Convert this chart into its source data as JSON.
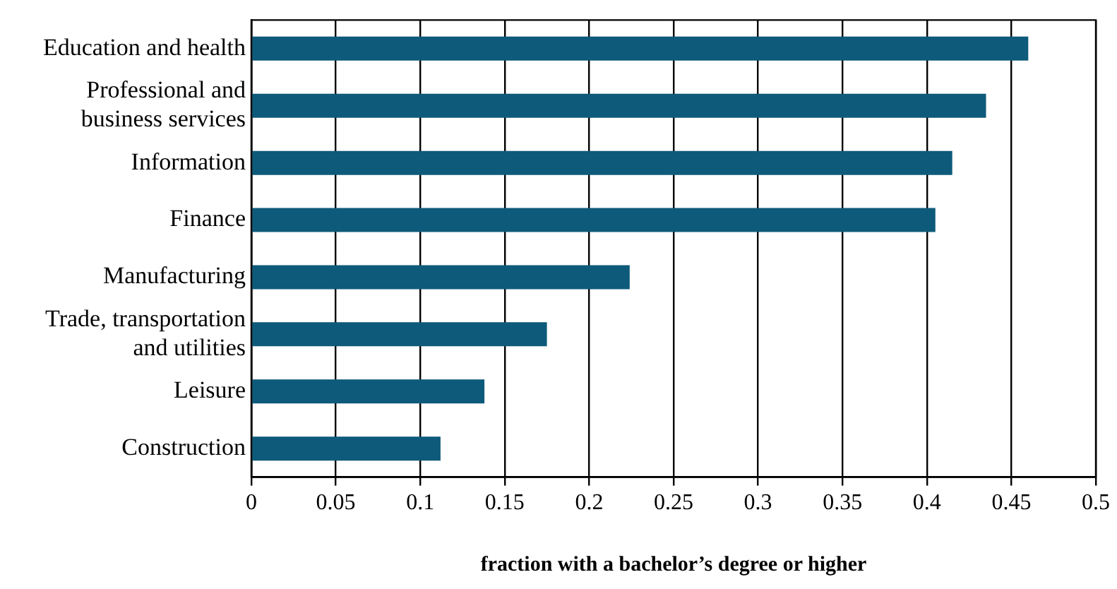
{
  "chart_data": {
    "type": "bar",
    "orientation": "horizontal",
    "xlabel": "fraction with a bachelor’s degree or higher",
    "categories": [
      "Education and health",
      "Professional and business services",
      "Information",
      "Finance",
      "Manufacturing",
      "Trade, transportation and utilities",
      "Leisure",
      "Construction"
    ],
    "values": [
      0.46,
      0.435,
      0.415,
      0.405,
      0.224,
      0.175,
      0.138,
      0.112
    ],
    "color": "#0e5a7a",
    "xlim": [
      0,
      0.5
    ],
    "xticks": [
      0,
      0.05,
      0.1,
      0.15,
      0.2,
      0.25,
      0.3,
      0.35,
      0.4,
      0.45,
      0.5
    ],
    "grid": "x",
    "legend": false
  }
}
